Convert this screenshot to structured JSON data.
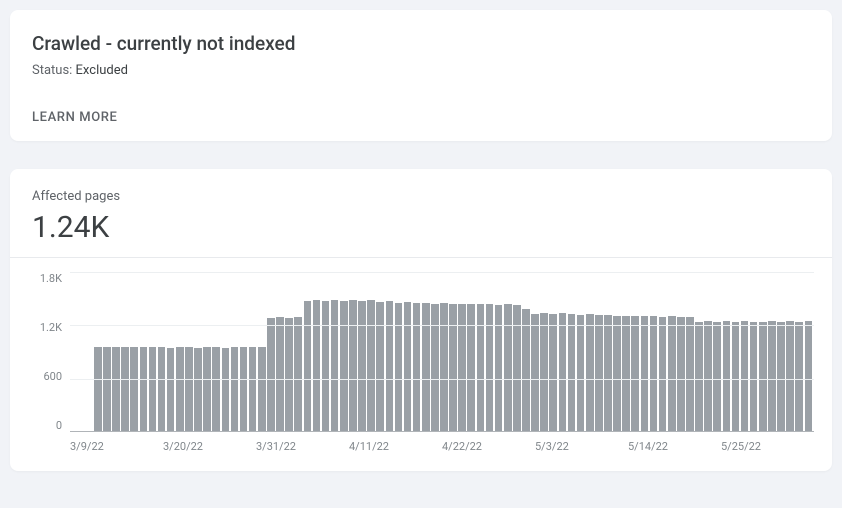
{
  "header_card": {
    "title": "Crawled - currently not indexed",
    "status_label": "Status: ",
    "status_value": "Excluded",
    "learn_more": "LEARN MORE"
  },
  "chart": {
    "type": "bar",
    "metric_label": "Affected pages",
    "metric_value": "1.24K",
    "bar_color": "#9aa0a6",
    "background_color": "#ffffff",
    "grid_color": "#eceff1",
    "baseline_color": "#b0b4b8",
    "ylim": [
      0,
      1800
    ],
    "y_ticks": [
      "1.8K",
      "1.2K",
      "600",
      "0"
    ],
    "x_ticks": [
      "3/9/22",
      "3/20/22",
      "3/31/22",
      "4/11/22",
      "4/22/22",
      "5/3/22",
      "5/14/22",
      "5/25/22"
    ],
    "values": [
      960,
      960,
      960,
      960,
      960,
      955,
      955,
      955,
      950,
      955,
      955,
      950,
      955,
      955,
      945,
      955,
      955,
      960,
      955,
      1280,
      1290,
      1285,
      1290,
      1470,
      1480,
      1475,
      1480,
      1470,
      1485,
      1475,
      1480,
      1460,
      1470,
      1450,
      1460,
      1455,
      1450,
      1445,
      1455,
      1440,
      1445,
      1440,
      1445,
      1440,
      1430,
      1435,
      1430,
      1380,
      1330,
      1335,
      1330,
      1335,
      1325,
      1320,
      1325,
      1315,
      1320,
      1310,
      1305,
      1310,
      1305,
      1300,
      1295,
      1300,
      1290,
      1295,
      1240,
      1250,
      1240,
      1245,
      1240,
      1245,
      1235,
      1240,
      1250,
      1240,
      1245,
      1235,
      1245
    ]
  }
}
